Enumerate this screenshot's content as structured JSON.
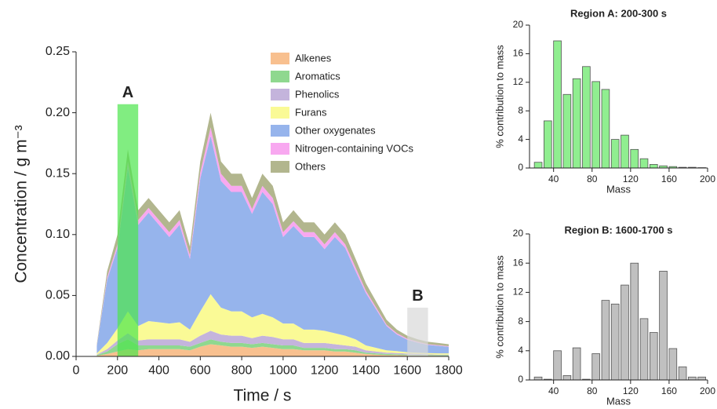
{
  "chart_data": [
    {
      "type": "area",
      "xlabel": "Time / s",
      "ylabel": "Concentration / g m⁻³",
      "x": [
        100,
        150,
        200,
        250,
        300,
        350,
        400,
        450,
        500,
        550,
        600,
        650,
        700,
        750,
        800,
        850,
        900,
        950,
        1000,
        1050,
        1100,
        1150,
        1200,
        1250,
        1300,
        1350,
        1400,
        1450,
        1500,
        1550,
        1600,
        1650,
        1700,
        1750,
        1800
      ],
      "series": [
        {
          "name": "Alkenes",
          "color": "#f8c08f",
          "values": [
            0.0005,
            0.002,
            0.004,
            0.006,
            0.005,
            0.006,
            0.006,
            0.006,
            0.006,
            0.005,
            0.008,
            0.01,
            0.009,
            0.008,
            0.008,
            0.007,
            0.008,
            0.007,
            0.006,
            0.006,
            0.005,
            0.005,
            0.005,
            0.004,
            0.004,
            0.003,
            0.002,
            0.0015,
            0.001,
            0.001,
            0.0008,
            0.0007,
            0.0006,
            0.0005,
            0.0005
          ]
        },
        {
          "name": "Aromatics",
          "color": "#8fd88f",
          "values": [
            0.0005,
            0.002,
            0.006,
            0.008,
            0.004,
            0.003,
            0.003,
            0.003,
            0.003,
            0.003,
            0.003,
            0.004,
            0.003,
            0.003,
            0.003,
            0.003,
            0.003,
            0.003,
            0.003,
            0.003,
            0.002,
            0.002,
            0.002,
            0.002,
            0.002,
            0.002,
            0.001,
            0.001,
            0.001,
            0.0008,
            0.0007,
            0.0006,
            0.0005,
            0.0005,
            0.0005
          ]
        },
        {
          "name": "Phenolics",
          "color": "#c4b4dc",
          "values": [
            0.0005,
            0.002,
            0.003,
            0.005,
            0.004,
            0.005,
            0.005,
            0.005,
            0.005,
            0.004,
            0.006,
            0.007,
            0.006,
            0.006,
            0.006,
            0.005,
            0.006,
            0.006,
            0.005,
            0.005,
            0.004,
            0.004,
            0.004,
            0.004,
            0.003,
            0.003,
            0.002,
            0.0015,
            0.001,
            0.001,
            0.0008,
            0.0007,
            0.0006,
            0.0005,
            0.0005
          ]
        },
        {
          "name": "Furans",
          "color": "#fafa96",
          "values": [
            0.001,
            0.005,
            0.01,
            0.018,
            0.012,
            0.015,
            0.014,
            0.013,
            0.014,
            0.01,
            0.02,
            0.03,
            0.022,
            0.02,
            0.02,
            0.017,
            0.018,
            0.016,
            0.013,
            0.013,
            0.011,
            0.011,
            0.01,
            0.009,
            0.008,
            0.006,
            0.004,
            0.003,
            0.002,
            0.0015,
            0.0012,
            0.001,
            0.001,
            0.001,
            0.001
          ]
        },
        {
          "name": "Other oxygenates",
          "color": "#96b4ec",
          "values": [
            0.006,
            0.052,
            0.066,
            0.118,
            0.083,
            0.089,
            0.08,
            0.071,
            0.08,
            0.058,
            0.109,
            0.13,
            0.104,
            0.098,
            0.098,
            0.085,
            0.1,
            0.093,
            0.071,
            0.08,
            0.076,
            0.076,
            0.067,
            0.079,
            0.072,
            0.056,
            0.043,
            0.0315,
            0.02,
            0.0137,
            0.0102,
            0.0083,
            0.0067,
            0.0062,
            0.0054
          ]
        },
        {
          "name": "Nitrogen-containing VOCs",
          "color": "#f8a8f0",
          "values": [
            0.0005,
            0.002,
            0.003,
            0.005,
            0.004,
            0.004,
            0.004,
            0.004,
            0.004,
            0.003,
            0.005,
            0.007,
            0.006,
            0.005,
            0.005,
            0.004,
            0.005,
            0.005,
            0.004,
            0.004,
            0.004,
            0.004,
            0.004,
            0.004,
            0.003,
            0.003,
            0.002,
            0.0015,
            0.001,
            0.001,
            0.0008,
            0.0007,
            0.0006,
            0.0005,
            0.0005
          ]
        },
        {
          "name": "Others",
          "color": "#b2b68e",
          "values": [
            0.001,
            0.005,
            0.008,
            0.01,
            0.008,
            0.008,
            0.008,
            0.008,
            0.008,
            0.007,
            0.009,
            0.012,
            0.01,
            0.01,
            0.01,
            0.009,
            0.01,
            0.01,
            0.008,
            0.009,
            0.008,
            0.008,
            0.008,
            0.008,
            0.008,
            0.007,
            0.006,
            0.005,
            0.004,
            0.003,
            0.0025,
            0.002,
            0.002,
            0.0018,
            0.0016
          ]
        }
      ],
      "regions": [
        {
          "label": "A",
          "x": [
            200,
            300
          ],
          "top": 0.207,
          "color": "#4ce64c"
        },
        {
          "label": "B",
          "x": [
            1600,
            1700
          ],
          "top": 0.04,
          "color": "#d8d8d8"
        }
      ],
      "xlim": [
        0,
        1800
      ],
      "xticks": [
        0,
        200,
        400,
        600,
        800,
        1000,
        1200,
        1400,
        1600,
        1800
      ],
      "ylim": [
        0,
        0.25
      ],
      "yticks": [
        {
          "value": 0,
          "label": "0.00"
        },
        {
          "value": 0.05,
          "label": "0.05"
        },
        {
          "value": 0.1,
          "label": "0.10"
        },
        {
          "value": 0.15,
          "label": "0.15"
        },
        {
          "value": 0.2,
          "label": "0.20"
        },
        {
          "value": 0.25,
          "label": "0.25"
        }
      ]
    },
    {
      "type": "bar",
      "title": "Region A: 200-300 s",
      "xlabel": "Mass",
      "ylabel": "% contribution to mass",
      "color": "#90ee90",
      "x": [
        24,
        34,
        44,
        54,
        64,
        74,
        84,
        94,
        104,
        114,
        124,
        134,
        144,
        154,
        164,
        174,
        184,
        194
      ],
      "values": [
        0.8,
        6.6,
        17.8,
        10.3,
        12.5,
        14.2,
        12.1,
        11,
        4,
        4.6,
        2.6,
        1.3,
        0.5,
        0.3,
        0.2,
        0.1,
        0.1,
        0.05
      ],
      "xlim": [
        15,
        200
      ],
      "xticks": [
        40,
        80,
        120,
        160,
        200
      ],
      "ylim": [
        0,
        20
      ],
      "yticks": [
        0,
        4,
        8,
        12,
        16,
        20
      ]
    },
    {
      "type": "bar",
      "title": "Region B: 1600-1700 s",
      "xlabel": "Mass",
      "ylabel": "% contribution to mass",
      "color": "#c0c0c0",
      "x": [
        24,
        34,
        44,
        54,
        64,
        74,
        84,
        94,
        104,
        114,
        124,
        134,
        144,
        154,
        164,
        174,
        184,
        194
      ],
      "values": [
        0.4,
        0.1,
        4,
        0.6,
        4.4,
        0.1,
        3.6,
        10.9,
        10.4,
        13,
        16,
        8.4,
        6.5,
        14.9,
        4.3,
        1.8,
        0.4,
        0.4
      ],
      "xlim": [
        15,
        200
      ],
      "xticks": [
        40,
        80,
        120,
        160,
        200
      ],
      "ylim": [
        0,
        20
      ],
      "yticks": [
        0,
        4,
        8,
        12,
        16,
        20
      ]
    }
  ]
}
